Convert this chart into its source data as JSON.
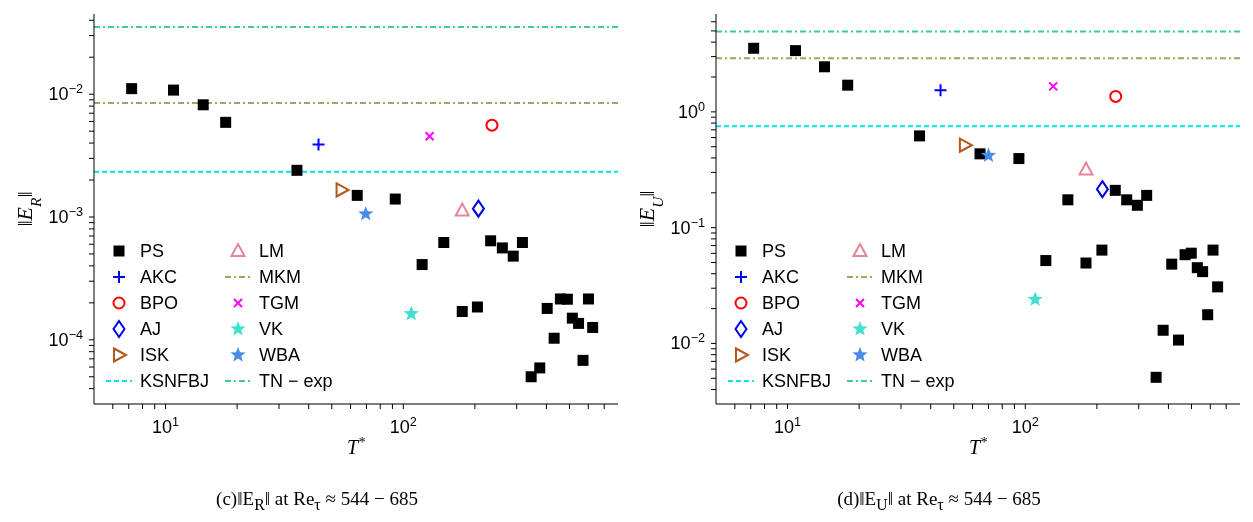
{
  "chart_data": [
    {
      "type": "scatter",
      "title": "(c)‖E$_{R}$‖ at Re$_{τ}$ ≈ 544 − 685",
      "xlabel": "T$^{*}$",
      "ylabel": "‖E$_{R}$‖",
      "log": "xy",
      "grid": false,
      "legend": "bottom left",
      "xlim": [
        5,
        800
      ],
      "xticks": [
        {
          "value": 6,
          "label": null
        },
        {
          "value": 7,
          "label": null
        },
        {
          "value": 8,
          "label": null
        },
        {
          "value": 9,
          "label": null
        },
        {
          "value": 10,
          "label": "10$^{1}$"
        },
        {
          "value": 20,
          "label": null
        },
        {
          "value": 30,
          "label": null
        },
        {
          "value": 40,
          "label": null
        },
        {
          "value": 50,
          "label": null
        },
        {
          "value": 60,
          "label": null
        },
        {
          "value": 70,
          "label": null
        },
        {
          "value": 80,
          "label": null
        },
        {
          "value": 90,
          "label": null
        },
        {
          "value": 100,
          "label": "10$^{2}$"
        },
        {
          "value": 200,
          "label": null
        },
        {
          "value": 300,
          "label": null
        },
        {
          "value": 400,
          "label": null
        },
        {
          "value": 500,
          "label": null
        },
        {
          "value": 600,
          "label": null
        },
        {
          "value": 700,
          "label": null
        }
      ],
      "ylim": [
        3e-05,
        0.045
      ],
      "yticks": [
        {
          "value": 4e-05,
          "label": null
        },
        {
          "value": 5e-05,
          "label": null
        },
        {
          "value": 6e-05,
          "label": null
        },
        {
          "value": 7e-05,
          "label": null
        },
        {
          "value": 8e-05,
          "label": null
        },
        {
          "value": 9e-05,
          "label": null
        },
        {
          "value": 0.0001,
          "label": "10$^{−4}$"
        },
        {
          "value": 0.0002,
          "label": null
        },
        {
          "value": 0.0003,
          "label": null
        },
        {
          "value": 0.0004,
          "label": null
        },
        {
          "value": 0.0005,
          "label": null
        },
        {
          "value": 0.0006,
          "label": null
        },
        {
          "value": 0.0007,
          "label": null
        },
        {
          "value": 0.0008,
          "label": null
        },
        {
          "value": 0.0009,
          "label": null
        },
        {
          "value": 0.001,
          "label": "10$^{−3}$"
        },
        {
          "value": 0.002,
          "label": null
        },
        {
          "value": 0.003,
          "label": null
        },
        {
          "value": 0.004,
          "label": null
        },
        {
          "value": 0.005,
          "label": null
        },
        {
          "value": 0.006,
          "label": null
        },
        {
          "value": 0.007,
          "label": null
        },
        {
          "value": 0.008,
          "label": null
        },
        {
          "value": 0.009,
          "label": null
        },
        {
          "value": 0.01,
          "label": "10$^{−2}$"
        },
        {
          "value": 0.02,
          "label": null
        },
        {
          "value": 0.03,
          "label": null
        },
        {
          "value": 0.04,
          "label": null
        }
      ],
      "series": [
        {
          "name": "PS",
          "type": "scatter",
          "marker": "square",
          "color": "#000000",
          "x": [
            7.2,
            10.8,
            14.4,
            17.9,
            35.7,
            64,
            92.5,
            120,
            148,
            233,
            261,
            290,
            317,
            177,
            205,
            403,
            431,
            458,
            490,
            514,
            546,
            601,
            626,
            570,
            345,
            375
          ],
          "values": [
            0.0111,
            0.0108,
            0.0082,
            0.0059,
            0.0024,
            0.0015,
            0.0014,
            0.00041,
            0.00062,
            0.00064,
            0.00056,
            0.00048,
            0.00062,
            0.00017,
            0.000185,
            0.00018,
            0.000103,
            0.000215,
            0.000214,
            0.00015,
            0.000136,
            0.000215,
            0.000126,
            6.8e-05,
            5e-05,
            5.9e-05
          ]
        },
        {
          "name": "AKC",
          "type": "scatter",
          "marker": "plus",
          "color": "#0000ff",
          "x": [
            44
          ],
          "values": [
            0.0039
          ]
        },
        {
          "name": "BPO",
          "type": "scatter",
          "marker": "circle",
          "color": "#ff0000",
          "x": [
            236
          ],
          "values": [
            0.0056
          ]
        },
        {
          "name": "AJ",
          "type": "scatter",
          "marker": "diamond",
          "color": "#0000ee",
          "x": [
            207
          ],
          "values": [
            0.00117
          ]
        },
        {
          "name": "ISK",
          "type": "scatter",
          "marker": "triangle-right",
          "color": "#b5561c",
          "x": [
            55
          ],
          "values": [
            0.00166
          ]
        },
        {
          "name": "KSNFBJ",
          "type": "line",
          "line_style": "dashed",
          "color": "#00e5ee",
          "x": [
            5,
            800
          ],
          "values": [
            0.00234,
            0.00234
          ]
        },
        {
          "name": "LM",
          "type": "scatter",
          "marker": "triangle",
          "color": "#e0889a",
          "x": [
            177
          ],
          "values": [
            0.00113
          ]
        },
        {
          "name": "MKM",
          "type": "line",
          "line_style": "dashdot",
          "color": "#aaa060",
          "x": [
            5,
            800
          ],
          "values": [
            0.0085,
            0.0085
          ]
        },
        {
          "name": "TGM",
          "type": "scatter",
          "marker": "cross",
          "color": "#ff00ff",
          "x": [
            129
          ],
          "values": [
            0.00455
          ]
        },
        {
          "name": "VK",
          "type": "scatter",
          "marker": "star",
          "color": "#40e0d0",
          "x": [
            108
          ],
          "values": [
            0.000163
          ]
        },
        {
          "name": "WBA",
          "marker": "star",
          "color": "#4a8ae8",
          "x": [
            69.5
          ],
          "values": [
            0.00106
          ]
        },
        {
          "name": "TN − exp",
          "type": "line",
          "line_style": "dashdot",
          "color": "#3ed08a",
          "x": [
            5,
            800
          ],
          "values": [
            0.0352,
            0.0352
          ]
        }
      ]
    },
    {
      "type": "scatter",
      "title": "(d)‖E$_{U}$‖ at Re$_{τ}$ ≈ 544 − 685",
      "xlabel": "T$^{*}$",
      "ylabel": "‖E$_{U}$‖",
      "log": "xy",
      "grid": false,
      "legend": "bottom left",
      "xlim": [
        5,
        800
      ],
      "xticks": [
        {
          "value": 6,
          "label": null
        },
        {
          "value": 7,
          "label": null
        },
        {
          "value": 8,
          "label": null
        },
        {
          "value": 9,
          "label": null
        },
        {
          "value": 10,
          "label": "10$^{1}$"
        },
        {
          "value": 20,
          "label": null
        },
        {
          "value": 30,
          "label": null
        },
        {
          "value": 40,
          "label": null
        },
        {
          "value": 50,
          "label": null
        },
        {
          "value": 60,
          "label": null
        },
        {
          "value": 70,
          "label": null
        },
        {
          "value": 80,
          "label": null
        },
        {
          "value": 90,
          "label": null
        },
        {
          "value": 100,
          "label": "10$^{2}$"
        },
        {
          "value": 200,
          "label": null
        },
        {
          "value": 300,
          "label": null
        },
        {
          "value": 400,
          "label": null
        },
        {
          "value": 500,
          "label": null
        },
        {
          "value": 600,
          "label": null
        },
        {
          "value": 700,
          "label": null
        }
      ],
      "ylim": [
        0.003,
        7
      ],
      "yticks": [
        {
          "value": 0.004,
          "label": null
        },
        {
          "value": 0.005,
          "label": null
        },
        {
          "value": 0.006,
          "label": null
        },
        {
          "value": 0.007,
          "label": null
        },
        {
          "value": 0.008,
          "label": null
        },
        {
          "value": 0.009,
          "label": null
        },
        {
          "value": 0.01,
          "label": "10$^{−2}$"
        },
        {
          "value": 0.02,
          "label": null
        },
        {
          "value": 0.03,
          "label": null
        },
        {
          "value": 0.04,
          "label": null
        },
        {
          "value": 0.05,
          "label": null
        },
        {
          "value": 0.06,
          "label": null
        },
        {
          "value": 0.07,
          "label": null
        },
        {
          "value": 0.08,
          "label": null
        },
        {
          "value": 0.09,
          "label": null
        },
        {
          "value": 0.1,
          "label": "10$^{−1}$"
        },
        {
          "value": 0.2,
          "label": null
        },
        {
          "value": 0.3,
          "label": null
        },
        {
          "value": 0.4,
          "label": null
        },
        {
          "value": 0.5,
          "label": null
        },
        {
          "value": 0.6,
          "label": null
        },
        {
          "value": 0.7,
          "label": null
        },
        {
          "value": 0.8,
          "label": null
        },
        {
          "value": 0.9,
          "label": null
        },
        {
          "value": 1,
          "label": "10$^{0}$"
        },
        {
          "value": 2,
          "label": null
        },
        {
          "value": 3,
          "label": null
        },
        {
          "value": 4,
          "label": null
        },
        {
          "value": 5,
          "label": null
        },
        {
          "value": 6,
          "label": null
        }
      ],
      "series": [
        {
          "name": "PS",
          "type": "scatter",
          "marker": "square",
          "color": "#000000",
          "x": [
            7.2,
            10.8,
            14.3,
            17.9,
            35.9,
            64.5,
            94,
            122,
            151,
            239,
            267,
            296,
            324,
            180,
            210,
            413,
            380,
            441,
            470,
            499,
            529,
            557,
            616,
            644,
            585,
            355
          ],
          "values": [
            3.54,
            3.38,
            2.45,
            1.7,
            0.62,
            0.434,
            0.395,
            0.052,
            0.174,
            0.21,
            0.174,
            0.156,
            0.19,
            0.0495,
            0.064,
            0.0484,
            0.013,
            0.0107,
            0.0584,
            0.0602,
            0.0451,
            0.0417,
            0.064,
            0.0308,
            0.0177,
            0.0051
          ]
        },
        {
          "name": "AKC",
          "type": "scatter",
          "marker": "plus",
          "color": "#0000ff",
          "x": [
            44
          ],
          "values": [
            1.54
          ]
        },
        {
          "name": "BPO",
          "type": "scatter",
          "marker": "circle",
          "color": "#ff0000",
          "x": [
            240
          ],
          "values": [
            1.36
          ]
        },
        {
          "name": "AJ",
          "type": "scatter",
          "marker": "diamond",
          "color": "#0000ee",
          "x": [
            211
          ],
          "values": [
            0.215
          ]
        },
        {
          "name": "ISK",
          "type": "scatter",
          "marker": "triangle-right",
          "color": "#b5561c",
          "x": [
            55.7
          ],
          "values": [
            0.515
          ]
        },
        {
          "name": "KSNFBJ",
          "type": "line",
          "line_style": "dashed",
          "color": "#00e5ee",
          "x": [
            5,
            800
          ],
          "values": [
            0.75,
            0.75
          ]
        },
        {
          "name": "LM",
          "type": "scatter",
          "marker": "triangle",
          "color": "#e0889a",
          "x": [
            180
          ],
          "values": [
            0.318
          ]
        },
        {
          "name": "MKM",
          "type": "line",
          "line_style": "dashdot",
          "color": "#aaa060",
          "x": [
            5,
            800
          ],
          "values": [
            2.91,
            2.91
          ]
        },
        {
          "name": "TGM",
          "type": "scatter",
          "marker": "cross",
          "color": "#ff00ff",
          "x": [
            131
          ],
          "values": [
            1.66
          ]
        },
        {
          "name": "VK",
          "type": "scatter",
          "marker": "star",
          "color": "#40e0d0",
          "x": [
            110
          ],
          "values": [
            0.024
          ]
        },
        {
          "name": "WBA",
          "marker": "star",
          "color": "#4a8ae8",
          "x": [
            70
          ],
          "values": [
            0.42
          ]
        },
        {
          "name": "TN − exp",
          "type": "line",
          "line_style": "dashdot",
          "color": "#3ed08a",
          "x": [
            5,
            800
          ],
          "values": [
            4.95,
            4.95
          ]
        }
      ]
    }
  ]
}
